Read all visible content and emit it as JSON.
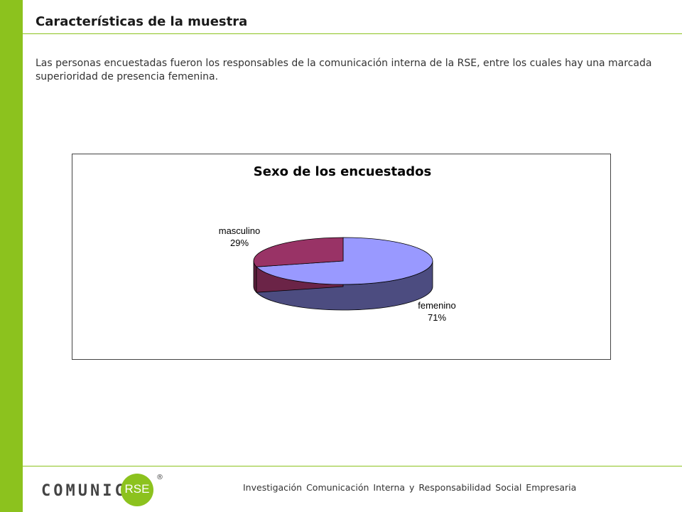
{
  "page": {
    "title": "Características de la muestra",
    "intro": "Las personas encuestadas fueron los responsables de la comunicación interna de la RSE, entre los cuales hay una marcada superioridad de presencia femenina."
  },
  "chart_data": {
    "type": "pie",
    "title": "Sexo de los encuestados",
    "style": "3d",
    "slices": [
      {
        "label": "femenino",
        "value": 71,
        "value_label": "71%",
        "color": "#9999ff",
        "side_color": "#4c4c80"
      },
      {
        "label": "masculino",
        "value": 29,
        "value_label": "29%",
        "color": "#993366",
        "side_color": "#5c1f3d"
      }
    ]
  },
  "footer": {
    "logo_text": "COMUNICA",
    "logo_badge": "RSE",
    "logo_reg": "®",
    "text": "Investigación Comunicación Interna y Responsabilidad Social Empresaria"
  },
  "colors": {
    "accent": "#8cc21e"
  }
}
